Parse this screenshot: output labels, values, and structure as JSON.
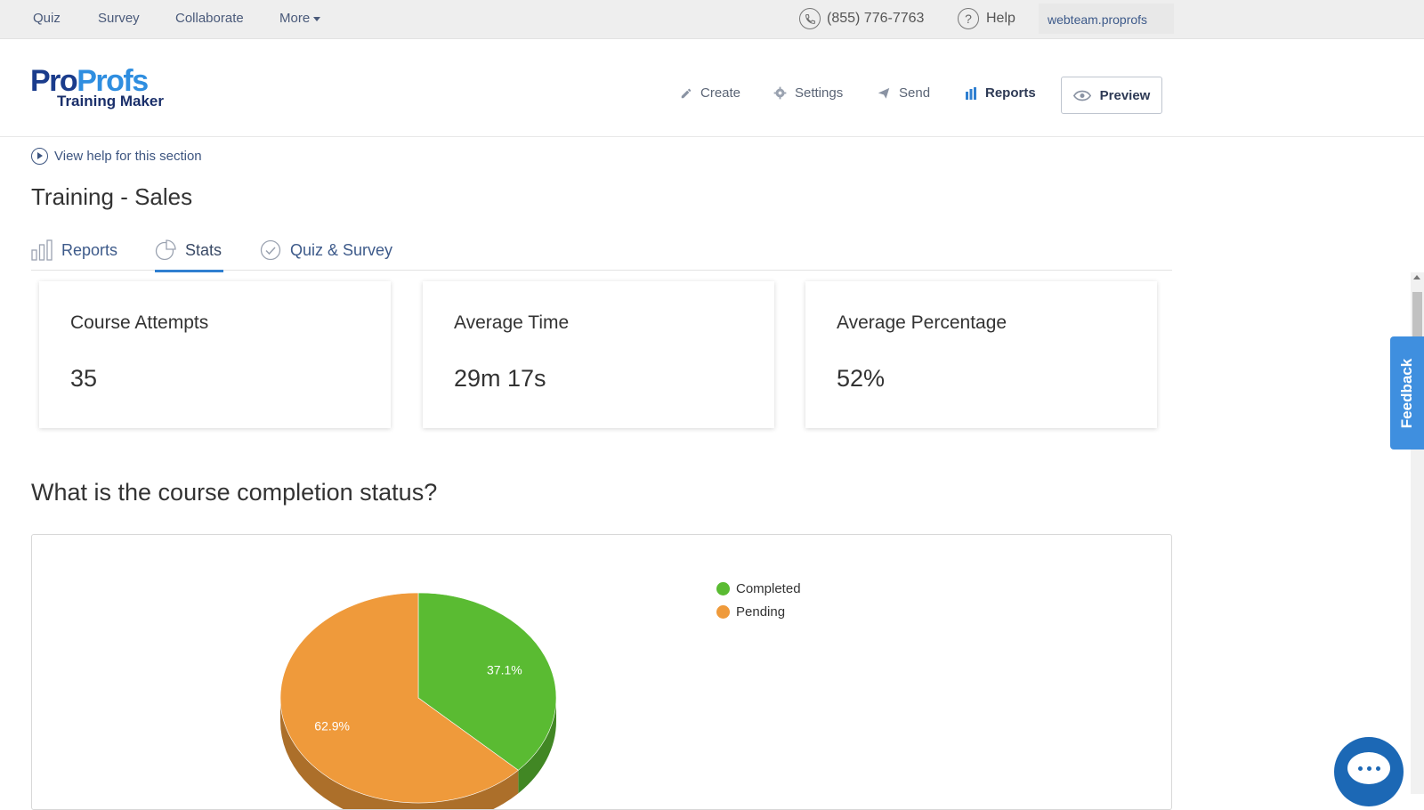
{
  "topbar": {
    "links": [
      "Quiz",
      "Survey",
      "Collaborate",
      "More"
    ],
    "phone": "(855) 776-7763",
    "help": "Help",
    "account": "webteam.proprofs"
  },
  "logo": {
    "pro1": "Pro",
    "pro2": "Profs",
    "sub": "Training Maker"
  },
  "header_nav": {
    "create": "Create",
    "settings": "Settings",
    "send": "Send",
    "reports": "Reports",
    "preview": "Preview"
  },
  "help_link": "View help for this section",
  "page_title": "Training - Sales",
  "tabs": {
    "reports": "Reports",
    "stats": "Stats",
    "quiz_survey": "Quiz & Survey"
  },
  "cards": [
    {
      "label": "Course Attempts",
      "value": "35"
    },
    {
      "label": "Average Time",
      "value": "29m 17s"
    },
    {
      "label": "Average Percentage",
      "value": "52%"
    }
  ],
  "section_title": "What is the course completion status?",
  "feedback": "Feedback",
  "chart_data": {
    "type": "pie",
    "title": "",
    "series": [
      {
        "name": "Completed",
        "value": 37.1,
        "label": "37.1%",
        "color": "#5abb32"
      },
      {
        "name": "Pending",
        "value": 62.9,
        "label": "62.9%",
        "color": "#ef9a3b"
      }
    ],
    "legend_position": "top-right",
    "style": "3d-pie"
  }
}
